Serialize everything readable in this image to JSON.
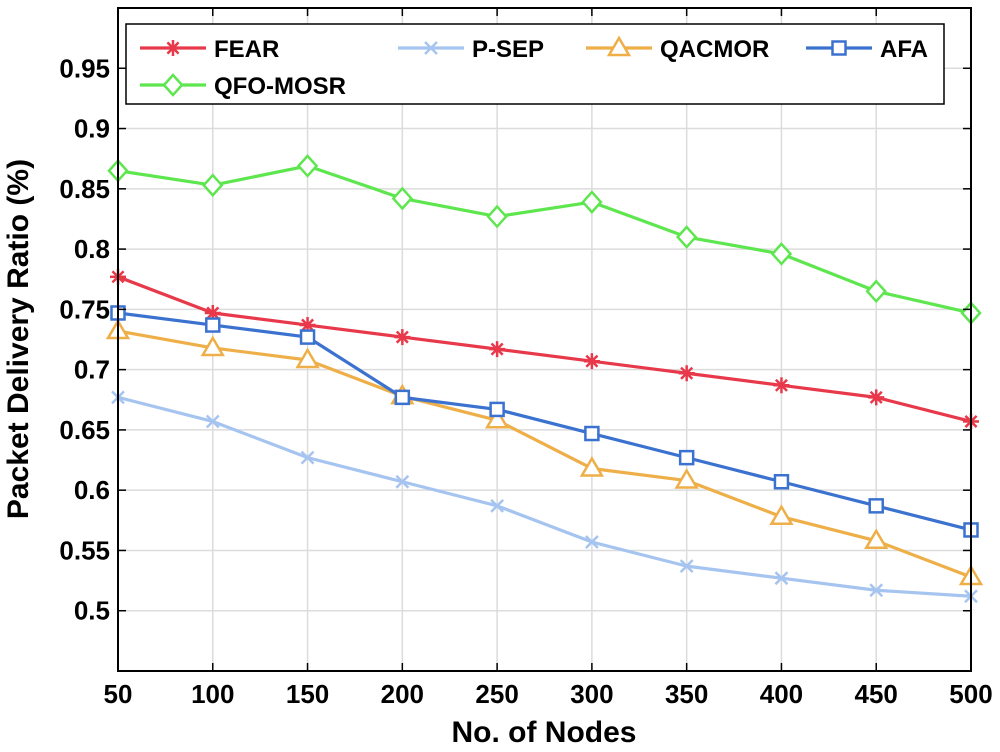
{
  "chart_data": {
    "type": "line",
    "title": "",
    "xlabel": "No. of Nodes",
    "ylabel": "Packet Delivery Ratio (%)",
    "x": [
      50,
      100,
      150,
      200,
      250,
      300,
      350,
      400,
      450,
      500
    ],
    "xlim": [
      50,
      500
    ],
    "ylim": [
      0.45,
      1.0
    ],
    "xticks": [
      "50",
      "100",
      "150",
      "200",
      "250",
      "300",
      "350",
      "400",
      "450",
      "500"
    ],
    "yticks": [
      0.5,
      0.55,
      0.6,
      0.65,
      0.7,
      0.75,
      0.8,
      0.85,
      0.9,
      0.95
    ],
    "ytick_labels": [
      "0.5",
      "0.55",
      "0.6",
      "0.65",
      "0.7",
      "0.75",
      "0.8",
      "0.85",
      "0.9",
      "0.95"
    ],
    "grid": true,
    "legend_position": "top",
    "series": [
      {
        "name": "FEAR",
        "marker": "asterisk",
        "color": "#e8394b",
        "values": [
          0.777,
          0.747,
          0.737,
          0.727,
          0.717,
          0.707,
          0.697,
          0.687,
          0.677,
          0.657
        ]
      },
      {
        "name": "P-SEP",
        "marker": "x",
        "color": "#a6c4f0",
        "values": [
          0.677,
          0.657,
          0.627,
          0.607,
          0.587,
          0.557,
          0.537,
          0.527,
          0.517,
          0.512
        ]
      },
      {
        "name": "QACMOR",
        "marker": "triangle",
        "color": "#eeaf48",
        "values": [
          0.732,
          0.718,
          0.708,
          0.678,
          0.658,
          0.618,
          0.608,
          0.578,
          0.558,
          0.528
        ]
      },
      {
        "name": "AFA",
        "marker": "square",
        "color": "#3b72cf",
        "values": [
          0.747,
          0.737,
          0.727,
          0.677,
          0.667,
          0.647,
          0.627,
          0.607,
          0.587,
          0.567
        ]
      },
      {
        "name": "QFO-MOSR",
        "marker": "diamond",
        "color": "#5ee64f",
        "values": [
          0.865,
          0.853,
          0.869,
          0.842,
          0.827,
          0.839,
          0.81,
          0.796,
          0.765,
          0.747
        ]
      }
    ]
  }
}
